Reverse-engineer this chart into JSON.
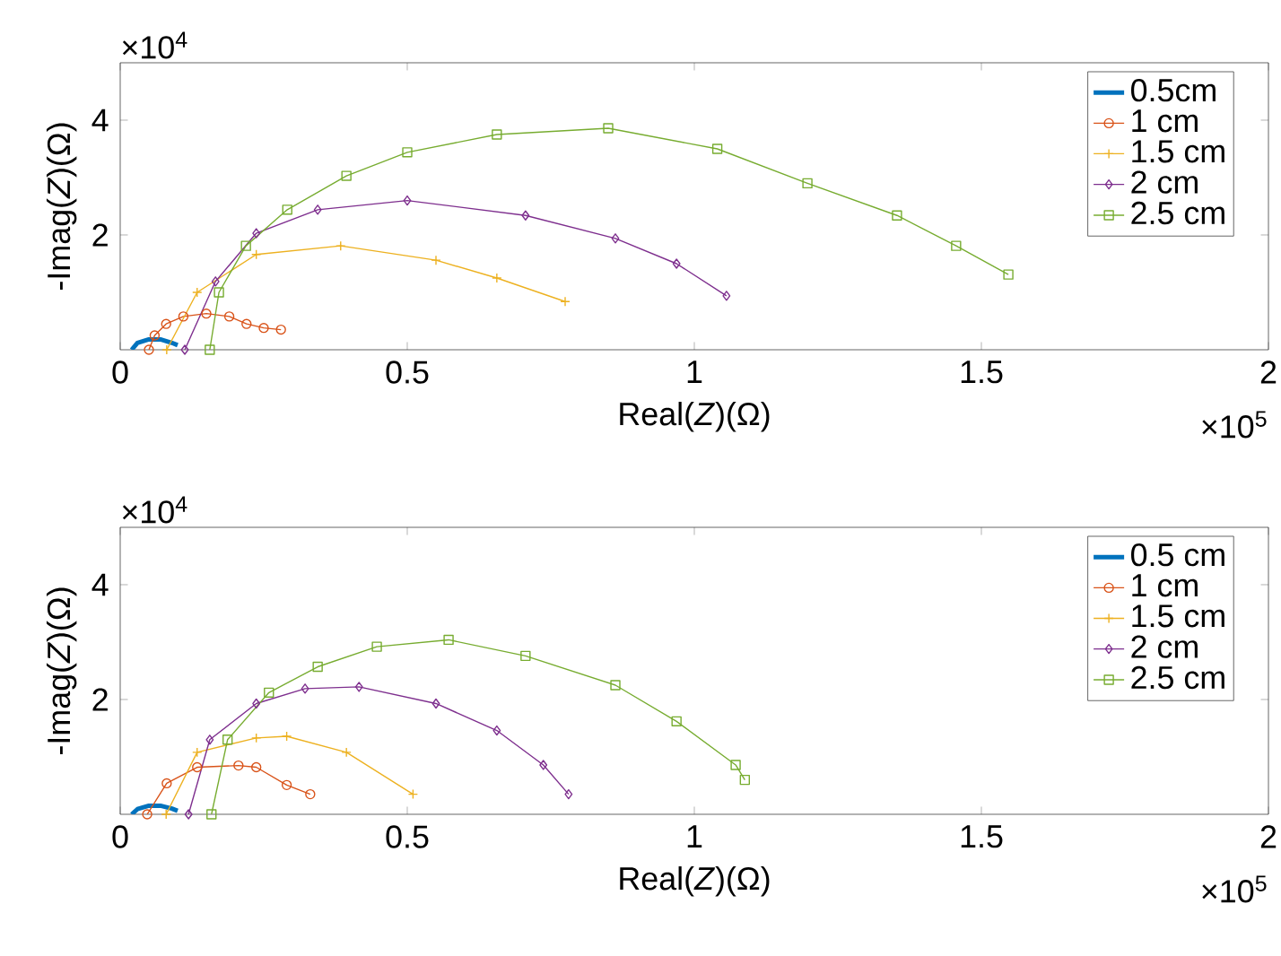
{
  "chart_data": [
    {
      "type": "line",
      "xlabel": "Real(*Z*)(Ω)",
      "ylabel": "-Imag(*Z*)(Ω)",
      "xlim": [
        0,
        2
      ],
      "ylim": [
        0,
        5
      ],
      "xticks": [
        0,
        0.5,
        1,
        1.5,
        2
      ],
      "yticks": [
        2,
        4
      ],
      "legend": "top right",
      "annotations": [
        "×10$^{4}$",
        "×10$^{5}$"
      ],
      "series": [
        {
          "name": "0.5cm",
          "color": "#0072bd",
          "marker": "none",
          "x": [
            0.02,
            0.03,
            0.05,
            0.07,
            0.09,
            0.1
          ],
          "values": [
            0,
            0.12,
            0.18,
            0.18,
            0.12,
            0.08
          ]
        },
        {
          "name": "1 cm",
          "color": "#d95319",
          "marker": "circle",
          "x": [
            0.05,
            0.06,
            0.08,
            0.11,
            0.15,
            0.19,
            0.22,
            0.25,
            0.28
          ],
          "values": [
            0,
            0.25,
            0.45,
            0.58,
            0.63,
            0.58,
            0.45,
            0.38,
            0.35
          ]
        },
        {
          "name": "1.5 cm",
          "color": "#edb120",
          "marker": "cross",
          "x": [
            0.081,
            0.134,
            0.237,
            0.384,
            0.55,
            0.656,
            0.775
          ],
          "values": [
            0,
            1.0,
            1.66,
            1.81,
            1.56,
            1.25,
            0.84
          ]
        },
        {
          "name": "2 cm",
          "color": "#7e2f8e",
          "marker": "diamond",
          "x": [
            0.1125,
            0.166,
            0.237,
            0.344,
            0.5,
            0.706,
            0.8625,
            0.969,
            1.056
          ],
          "values": [
            0,
            1.19,
            2.03,
            2.44,
            2.6,
            2.34,
            1.94,
            1.5,
            0.94
          ]
        },
        {
          "name": "2.5 cm",
          "color": "#77ac30",
          "marker": "square",
          "x": [
            0.156,
            0.172,
            0.219,
            0.291,
            0.394,
            0.5,
            0.656,
            0.85,
            1.04,
            1.197,
            1.353,
            1.456,
            1.547
          ],
          "values": [
            0,
            1.0,
            1.81,
            2.44,
            3.03,
            3.44,
            3.75,
            3.86,
            3.5,
            2.9,
            2.34,
            1.81,
            1.31
          ]
        }
      ]
    },
    {
      "type": "line",
      "xlabel": "Real(*Z*)(Ω)",
      "ylabel": "-Imag(*Z*)(Ω)",
      "xlim": [
        0,
        2
      ],
      "ylim": [
        0,
        5
      ],
      "xticks": [
        0,
        0.5,
        1,
        1.5,
        2
      ],
      "yticks": [
        2,
        4
      ],
      "legend": "top right",
      "annotations": [
        "×10$^{4}$",
        "×10$^{5}$"
      ],
      "series": [
        {
          "name": "0.5 cm",
          "color": "#0072bd",
          "marker": "none",
          "x": [
            0.02,
            0.03,
            0.05,
            0.07,
            0.09,
            0.1
          ],
          "values": [
            0,
            0.09,
            0.15,
            0.15,
            0.1,
            0.06
          ]
        },
        {
          "name": "1 cm",
          "color": "#d95319",
          "marker": "circle",
          "x": [
            0.047,
            0.081,
            0.134,
            0.206,
            0.237,
            0.29,
            0.331
          ],
          "values": [
            0,
            0.54,
            0.82,
            0.85,
            0.82,
            0.51,
            0.35
          ]
        },
        {
          "name": "1.5 cm",
          "color": "#edb120",
          "marker": "cross",
          "x": [
            0.08,
            0.134,
            0.237,
            0.29,
            0.394,
            0.51
          ],
          "values": [
            0,
            1.08,
            1.33,
            1.36,
            1.08,
            0.35
          ]
        },
        {
          "name": "2 cm",
          "color": "#7e2f8e",
          "marker": "diamond",
          "x": [
            0.119,
            0.156,
            0.237,
            0.322,
            0.416,
            0.55,
            0.656,
            0.737,
            0.781
          ],
          "values": [
            0,
            1.3,
            1.93,
            2.19,
            2.22,
            1.93,
            1.46,
            0.86,
            0.35
          ]
        },
        {
          "name": "2.5 cm",
          "color": "#77ac30",
          "marker": "square",
          "x": [
            0.159,
            0.187,
            0.259,
            0.344,
            0.447,
            0.572,
            0.706,
            0.8625,
            0.969,
            1.072,
            1.088
          ],
          "values": [
            0,
            1.3,
            2.12,
            2.57,
            2.92,
            3.04,
            2.76,
            2.25,
            1.62,
            0.86,
            0.6
          ]
        }
      ]
    }
  ]
}
